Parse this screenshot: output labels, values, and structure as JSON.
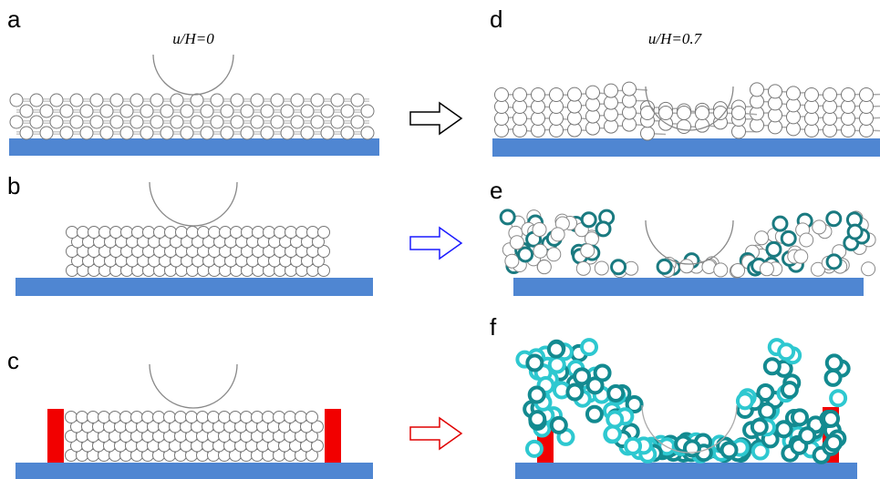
{
  "panels": [
    {
      "label": "a",
      "annotation": "u/H=0"
    },
    {
      "label": "b"
    },
    {
      "label": "c"
    },
    {
      "label": "d",
      "annotation": "u/H=0.7"
    },
    {
      "label": "e"
    },
    {
      "label": "f"
    }
  ]
}
